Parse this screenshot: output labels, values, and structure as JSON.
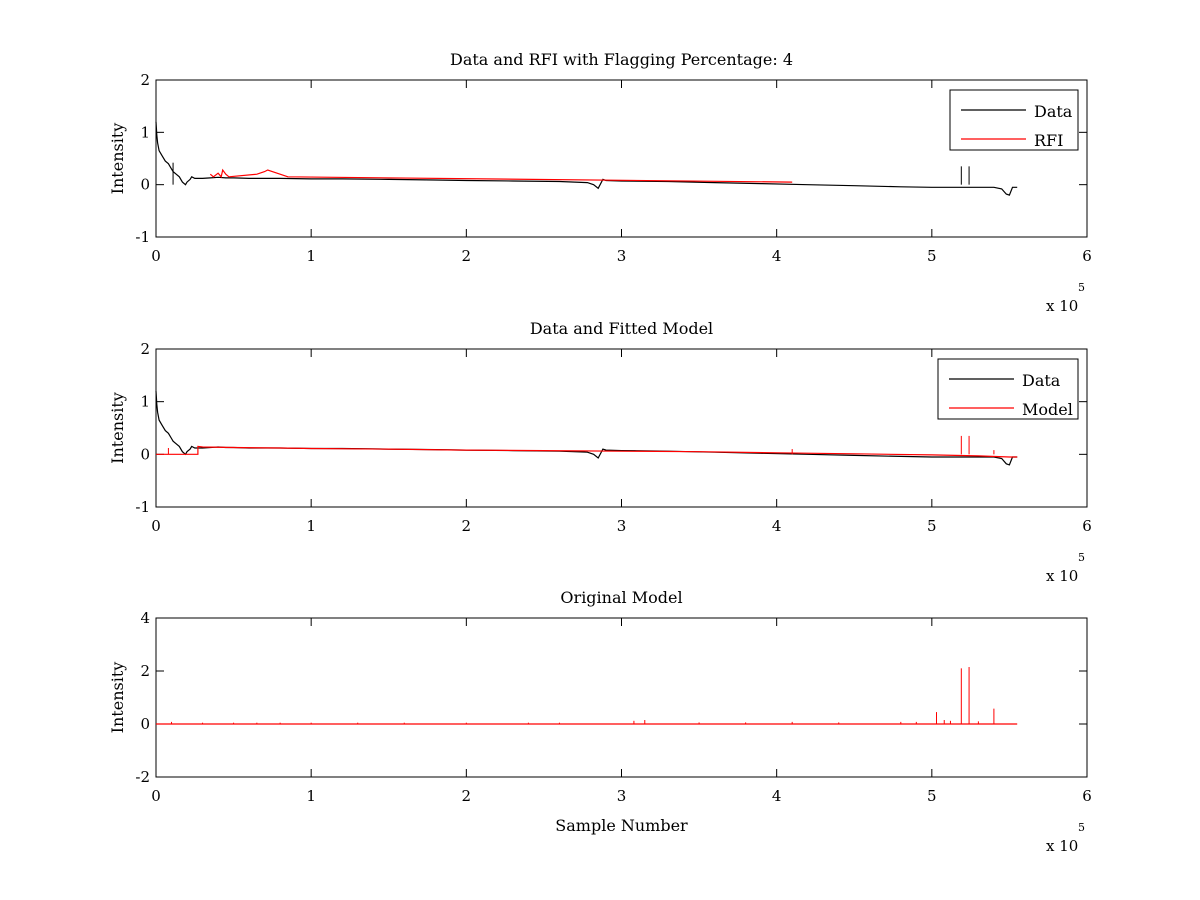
{
  "chart_data": [
    {
      "type": "line",
      "title": "Data and RFI with Flagging Percentage: 4",
      "xlabel": "",
      "ylabel": "Intensity",
      "xlim": [
        0,
        6
      ],
      "ylim": [
        -1,
        2
      ],
      "x_ticks": [
        "0",
        "1",
        "2",
        "3",
        "4",
        "5",
        "6"
      ],
      "y_ticks": [
        "-1",
        "0",
        "1",
        "2"
      ],
      "x_multiplier": {
        "base": "x 10",
        "exponent": "5"
      },
      "legend": {
        "position": "top-right",
        "entries": [
          {
            "label": "Data",
            "color": "#000000"
          },
          {
            "label": "RFI",
            "color": "#ff0000"
          }
        ]
      },
      "series": [
        {
          "name": "Data",
          "color": "#000000",
          "x": [
            0,
            0.005,
            0.01,
            0.02,
            0.04,
            0.06,
            0.08,
            0.1,
            0.11,
            0.13,
            0.15,
            0.17,
            0.19,
            0.2,
            0.22,
            0.23,
            0.25,
            0.3,
            0.35,
            0.4,
            0.45,
            0.5,
            0.6,
            0.7,
            0.8,
            1.0,
            1.2,
            1.5,
            1.8,
            2.0,
            2.3,
            2.6,
            2.78,
            2.82,
            2.85,
            2.88,
            2.9,
            3.0,
            3.3,
            3.6,
            3.9,
            4.2,
            4.5,
            4.8,
            5.0,
            5.2,
            5.4,
            5.45,
            5.48,
            5.5,
            5.52,
            5.55
          ],
          "y": [
            1.2,
            0.95,
            0.8,
            0.65,
            0.55,
            0.45,
            0.4,
            0.3,
            0.25,
            0.2,
            0.15,
            0.05,
            0.0,
            0.05,
            0.1,
            0.15,
            0.12,
            0.12,
            0.13,
            0.14,
            0.13,
            0.13,
            0.12,
            0.12,
            0.12,
            0.11,
            0.11,
            0.1,
            0.09,
            0.08,
            0.07,
            0.06,
            0.04,
            0.0,
            -0.07,
            0.1,
            0.08,
            0.07,
            0.06,
            0.04,
            0.02,
            0.0,
            -0.02,
            -0.04,
            -0.05,
            -0.05,
            -0.05,
            -0.08,
            -0.18,
            -0.2,
            -0.05,
            -0.05
          ]
        },
        {
          "name": "RFI",
          "color": "#ff0000",
          "x": [
            0.35,
            0.37,
            0.4,
            0.42,
            0.43,
            0.45,
            0.47,
            0.65,
            0.7,
            0.72,
            0.85,
            1.15,
            4.1
          ],
          "y": [
            0.2,
            0.15,
            0.22,
            0.15,
            0.28,
            0.2,
            0.15,
            0.2,
            0.25,
            0.28,
            0.15,
            0.14,
            0.05
          ]
        }
      ],
      "spikes": [
        {
          "x": 0.11,
          "y": 0.42,
          "color": "#000000"
        },
        {
          "x": 5.19,
          "y": 0.35,
          "color": "#000000"
        },
        {
          "x": 5.24,
          "y": 0.35,
          "color": "#000000"
        }
      ]
    },
    {
      "type": "line",
      "title": "Data and Fitted Model",
      "xlabel": "",
      "ylabel": "Intensity",
      "xlim": [
        0,
        6
      ],
      "ylim": [
        -1,
        2
      ],
      "x_ticks": [
        "0",
        "1",
        "2",
        "3",
        "4",
        "5",
        "6"
      ],
      "y_ticks": [
        "-1",
        "0",
        "1",
        "2"
      ],
      "x_multiplier": {
        "base": "x 10",
        "exponent": "5"
      },
      "legend": {
        "position": "top-right",
        "entries": [
          {
            "label": "Data",
            "color": "#000000"
          },
          {
            "label": "Model",
            "color": "#ff0000"
          }
        ]
      },
      "series": [
        {
          "name": "Data",
          "color": "#000000",
          "x": [
            0,
            0.005,
            0.01,
            0.02,
            0.04,
            0.06,
            0.08,
            0.1,
            0.11,
            0.13,
            0.15,
            0.17,
            0.19,
            0.2,
            0.22,
            0.23,
            0.25,
            0.3,
            0.35,
            0.4,
            0.45,
            0.5,
            0.6,
            0.7,
            0.8,
            1.0,
            1.2,
            1.5,
            1.8,
            2.0,
            2.3,
            2.6,
            2.78,
            2.82,
            2.85,
            2.88,
            2.9,
            3.0,
            3.3,
            3.6,
            3.9,
            4.2,
            4.5,
            4.8,
            5.0,
            5.2,
            5.4,
            5.45,
            5.48,
            5.5,
            5.52,
            5.55
          ],
          "y": [
            1.2,
            0.95,
            0.8,
            0.65,
            0.55,
            0.45,
            0.4,
            0.3,
            0.25,
            0.2,
            0.15,
            0.05,
            0.0,
            0.05,
            0.1,
            0.15,
            0.12,
            0.12,
            0.13,
            0.14,
            0.13,
            0.13,
            0.12,
            0.12,
            0.12,
            0.11,
            0.11,
            0.1,
            0.09,
            0.08,
            0.07,
            0.06,
            0.04,
            0.0,
            -0.07,
            0.1,
            0.08,
            0.07,
            0.06,
            0.04,
            0.02,
            0.0,
            -0.02,
            -0.04,
            -0.05,
            -0.05,
            -0.05,
            -0.08,
            -0.18,
            -0.2,
            -0.05,
            -0.05
          ]
        },
        {
          "name": "Model",
          "color": "#ff0000",
          "x": [
            0,
            0.27,
            0.27,
            0.3,
            0.5,
            0.8,
            1.0,
            1.5,
            2.0,
            2.5,
            3.0,
            3.5,
            4.0,
            4.5,
            5.0,
            5.3,
            5.5,
            5.55
          ],
          "y": [
            0.0,
            0.0,
            0.15,
            0.14,
            0.13,
            0.12,
            0.11,
            0.1,
            0.08,
            0.07,
            0.06,
            0.05,
            0.03,
            0.01,
            -0.01,
            -0.03,
            -0.05,
            -0.05
          ]
        }
      ],
      "spikes": [
        {
          "x": 0.08,
          "y": 0.12,
          "color": "#ff0000"
        },
        {
          "x": 4.1,
          "y": 0.1,
          "color": "#ff0000"
        },
        {
          "x": 5.19,
          "y": 0.35,
          "color": "#ff0000"
        },
        {
          "x": 5.24,
          "y": 0.35,
          "color": "#ff0000"
        },
        {
          "x": 5.4,
          "y": 0.08,
          "color": "#ff0000"
        }
      ]
    },
    {
      "type": "line",
      "title": "Original Model",
      "xlabel": "Sample Number",
      "ylabel": "Intensity",
      "xlim": [
        0,
        6
      ],
      "ylim": [
        -2,
        4
      ],
      "x_ticks": [
        "0",
        "1",
        "2",
        "3",
        "4",
        "5",
        "6"
      ],
      "y_ticks": [
        "-2",
        "0",
        "2",
        "4"
      ],
      "x_multiplier": {
        "base": "x 10",
        "exponent": "5"
      },
      "legend": null,
      "series": [
        {
          "name": "",
          "color": "#ff0000",
          "x": [
            0,
            5.55
          ],
          "y": [
            0,
            0
          ]
        }
      ],
      "spikes": [
        {
          "x": 0.1,
          "y": 0.08,
          "color": "#ff0000"
        },
        {
          "x": 0.3,
          "y": 0.05,
          "color": "#ff0000"
        },
        {
          "x": 0.5,
          "y": 0.05,
          "color": "#ff0000"
        },
        {
          "x": 0.65,
          "y": 0.05,
          "color": "#ff0000"
        },
        {
          "x": 0.8,
          "y": 0.05,
          "color": "#ff0000"
        },
        {
          "x": 1.0,
          "y": 0.05,
          "color": "#ff0000"
        },
        {
          "x": 1.3,
          "y": 0.05,
          "color": "#ff0000"
        },
        {
          "x": 1.6,
          "y": 0.05,
          "color": "#ff0000"
        },
        {
          "x": 2.0,
          "y": 0.05,
          "color": "#ff0000"
        },
        {
          "x": 2.4,
          "y": 0.05,
          "color": "#ff0000"
        },
        {
          "x": 2.6,
          "y": 0.05,
          "color": "#ff0000"
        },
        {
          "x": 3.08,
          "y": 0.12,
          "color": "#ff0000"
        },
        {
          "x": 3.15,
          "y": 0.15,
          "color": "#ff0000"
        },
        {
          "x": 3.5,
          "y": 0.06,
          "color": "#ff0000"
        },
        {
          "x": 3.8,
          "y": 0.06,
          "color": "#ff0000"
        },
        {
          "x": 4.1,
          "y": 0.08,
          "color": "#ff0000"
        },
        {
          "x": 4.4,
          "y": 0.06,
          "color": "#ff0000"
        },
        {
          "x": 4.8,
          "y": 0.08,
          "color": "#ff0000"
        },
        {
          "x": 4.9,
          "y": 0.08,
          "color": "#ff0000"
        },
        {
          "x": 5.03,
          "y": 0.45,
          "color": "#ff0000"
        },
        {
          "x": 5.08,
          "y": 0.15,
          "color": "#ff0000"
        },
        {
          "x": 5.12,
          "y": 0.12,
          "color": "#ff0000"
        },
        {
          "x": 5.19,
          "y": 2.1,
          "color": "#ff0000"
        },
        {
          "x": 5.24,
          "y": 2.15,
          "color": "#ff0000"
        },
        {
          "x": 5.3,
          "y": 0.1,
          "color": "#ff0000"
        },
        {
          "x": 5.4,
          "y": 0.58,
          "color": "#ff0000"
        }
      ]
    }
  ]
}
